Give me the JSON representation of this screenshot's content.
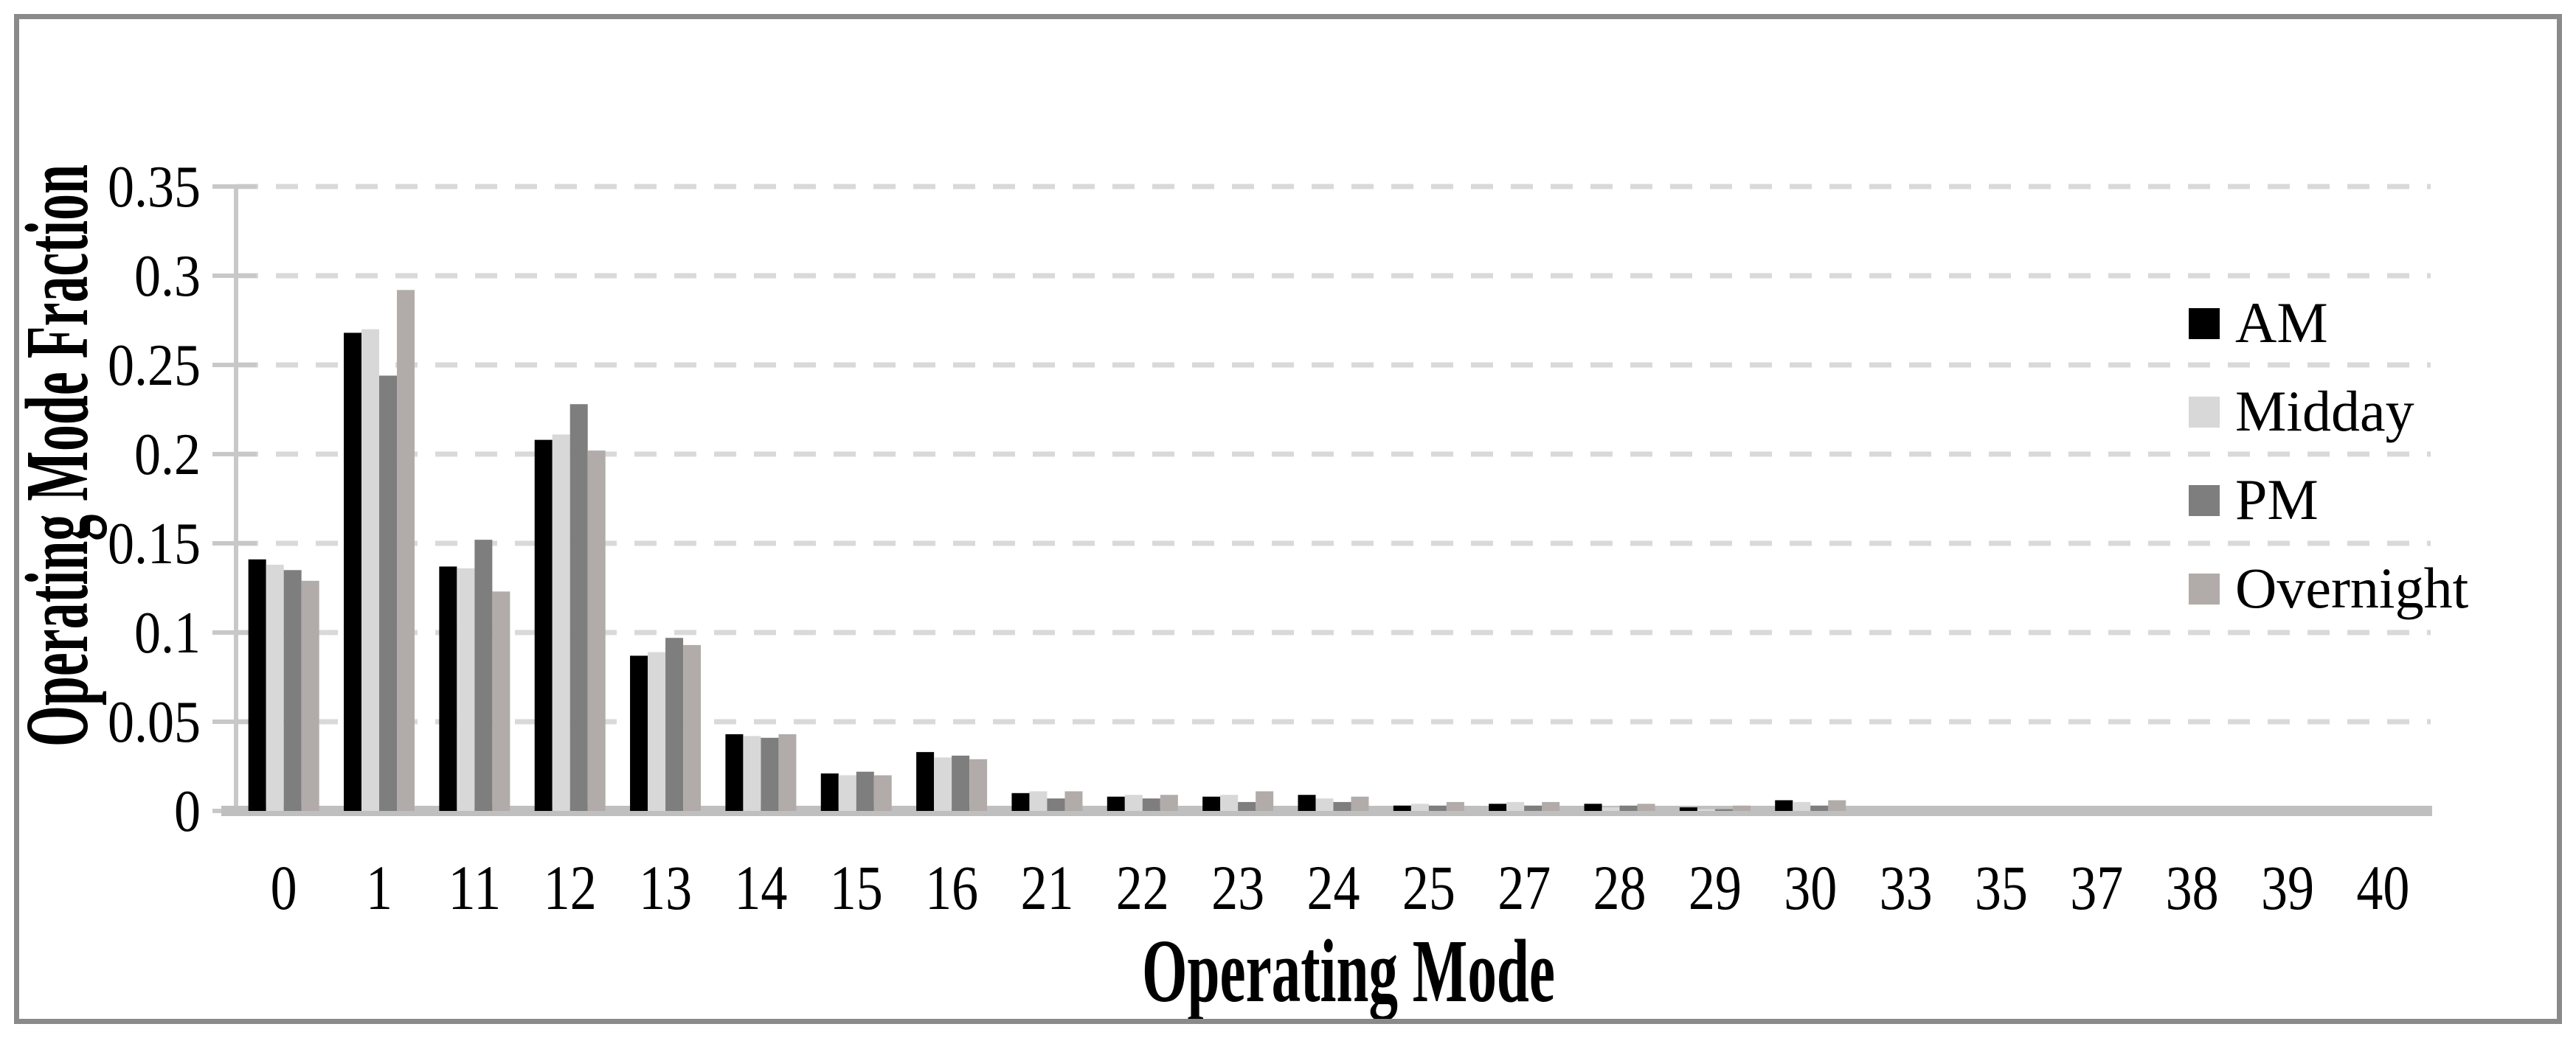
{
  "figure": {
    "background": "#ffffff",
    "border_color": "#8a8a8a"
  },
  "chart_data": {
    "type": "bar",
    "title": "",
    "xlabel": "Operating Mode",
    "ylabel": "Operating Mode Fraction",
    "categories": [
      "0",
      "1",
      "11",
      "12",
      "13",
      "14",
      "15",
      "16",
      "21",
      "22",
      "23",
      "24",
      "25",
      "27",
      "28",
      "29",
      "30",
      "33",
      "35",
      "37",
      "38",
      "39",
      "40"
    ],
    "y_ticks": [
      "0",
      "0.05",
      "0.1",
      "0.15",
      "0.2",
      "0.25",
      "0.3",
      "0.35"
    ],
    "ylim": [
      0,
      0.35
    ],
    "grid": "horizontal-dashed",
    "gridline_color": "#d9d9d9",
    "axis_color": "#c8c8c8",
    "baseline_color": "#bfbfbf",
    "legend_position": "right-inside",
    "series": [
      {
        "name": "AM",
        "color": "#000000",
        "values": [
          0.141,
          0.268,
          0.137,
          0.208,
          0.087,
          0.043,
          0.021,
          0.033,
          0.01,
          0.008,
          0.008,
          0.009,
          0.003,
          0.004,
          0.004,
          0.002,
          0.006,
          0,
          0,
          0,
          0,
          0,
          0
        ]
      },
      {
        "name": "Midday",
        "color": "#d8d8d8",
        "values": [
          0.138,
          0.27,
          0.136,
          0.211,
          0.089,
          0.042,
          0.02,
          0.03,
          0.011,
          0.009,
          0.009,
          0.007,
          0.004,
          0.005,
          0.002,
          0.001,
          0.005,
          0,
          0,
          0,
          0,
          0,
          0
        ]
      },
      {
        "name": "PM",
        "color": "#7e7e7e",
        "values": [
          0.135,
          0.244,
          0.152,
          0.228,
          0.097,
          0.041,
          0.022,
          0.031,
          0.007,
          0.007,
          0.005,
          0.005,
          0.003,
          0.003,
          0.003,
          0.001,
          0.003,
          0,
          0,
          0,
          0,
          0,
          0
        ]
      },
      {
        "name": "Overnight",
        "color": "#b1aca9",
        "values": [
          0.129,
          0.292,
          0.123,
          0.202,
          0.093,
          0.043,
          0.02,
          0.029,
          0.011,
          0.009,
          0.011,
          0.008,
          0.005,
          0.005,
          0.004,
          0.003,
          0.006,
          0,
          0,
          0,
          0,
          0,
          0
        ]
      }
    ]
  }
}
